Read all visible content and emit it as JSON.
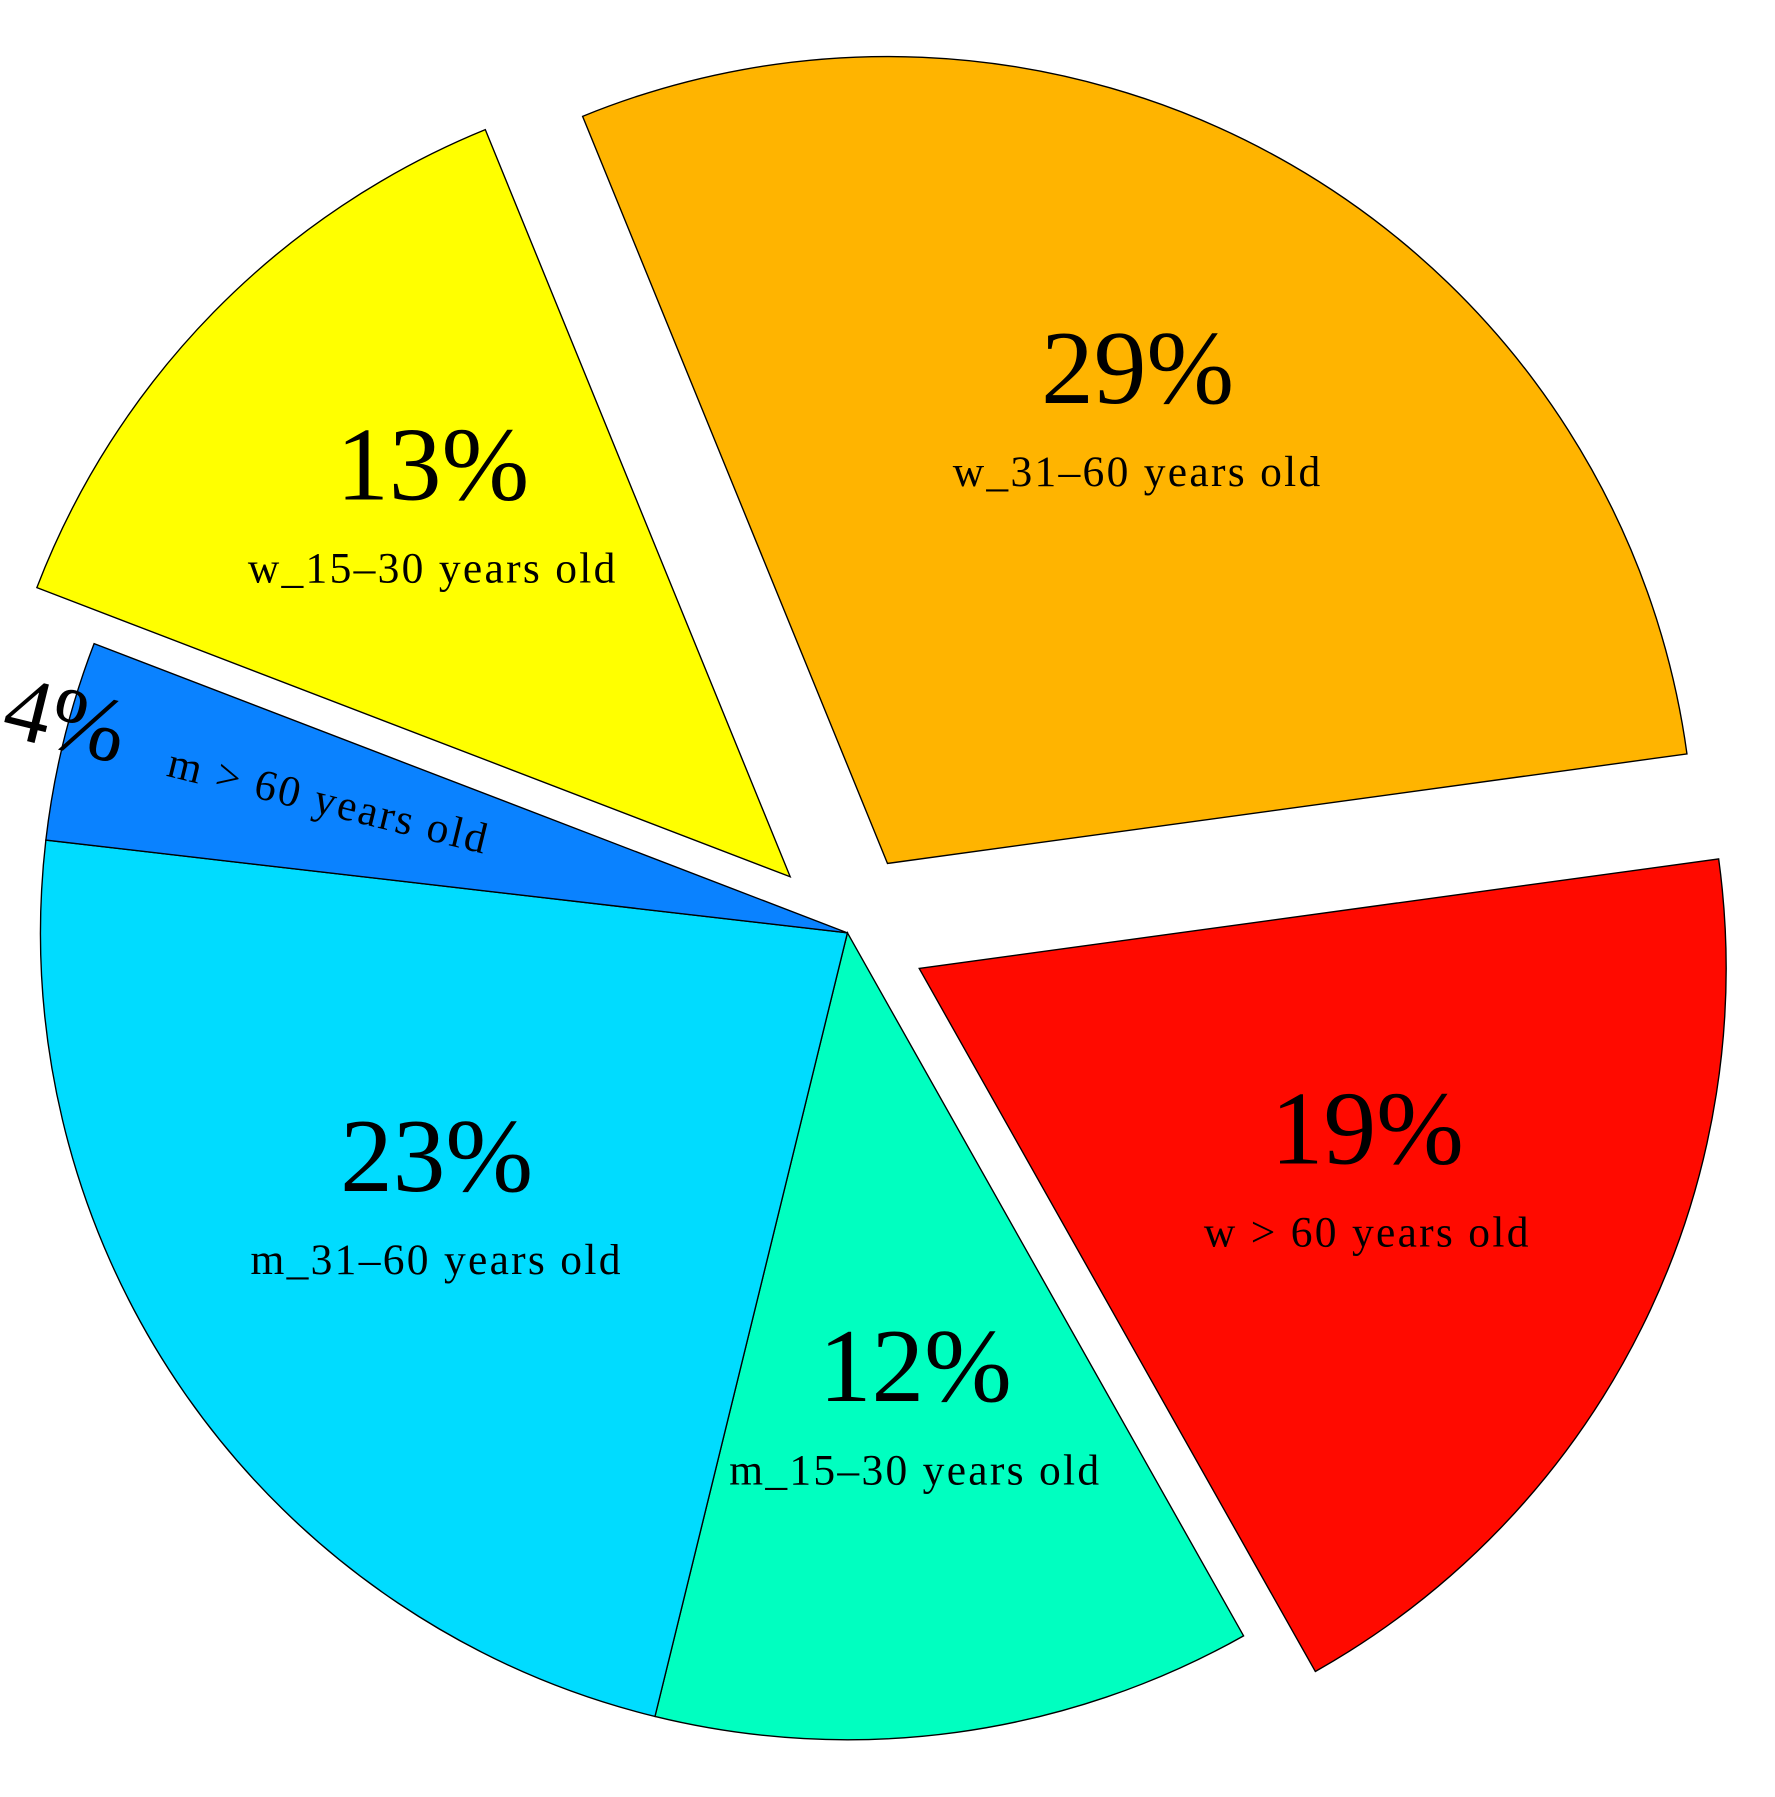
{
  "chart_data": {
    "type": "pie",
    "categories": [
      "w > 60 years old",
      "m_15–30 years old",
      "m_31–60 years old",
      "m > 60 years old",
      "w_15–30 years old",
      "w_31–60 years old"
    ],
    "values": [
      19,
      12,
      23,
      4,
      13,
      29
    ],
    "value_labels": [
      "19%",
      "12%",
      "23%",
      "4%",
      "13%",
      "29%"
    ],
    "colors": [
      "#ff0a00",
      "#00ffc0",
      "#00dcff",
      "#0a82ff",
      "#ffff00",
      "#ffb400"
    ],
    "explode": [
      true,
      false,
      false,
      false,
      true,
      true
    ]
  }
}
